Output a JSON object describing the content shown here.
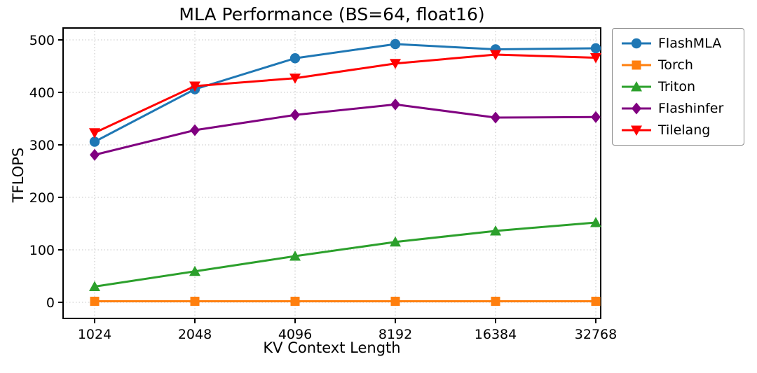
{
  "chart_data": {
    "type": "line",
    "title": "MLA Performance (BS=64, float16)",
    "xlabel": "KV Context Length",
    "ylabel": "TFLOPS",
    "categories": [
      "1024",
      "2048",
      "4096",
      "8192",
      "16384",
      "32768"
    ],
    "ylim": [
      0,
      500
    ],
    "yticks": [
      0,
      100,
      200,
      300,
      400,
      500
    ],
    "grid": true,
    "legend_position": "outside-right",
    "series": [
      {
        "name": "FlashMLA",
        "color": "#1f77b4",
        "marker": "circle",
        "values": [
          306,
          406,
          465,
          492,
          482,
          484
        ]
      },
      {
        "name": "Torch",
        "color": "#ff7f0e",
        "marker": "square",
        "values": [
          2,
          2,
          2,
          2,
          2,
          2
        ]
      },
      {
        "name": "Triton",
        "color": "#2ca02c",
        "marker": "triangle-up",
        "values": [
          30,
          59,
          88,
          115,
          136,
          152
        ]
      },
      {
        "name": "Flashinfer",
        "color": "#800080",
        "marker": "diamond",
        "values": [
          281,
          328,
          357,
          377,
          352,
          353
        ]
      },
      {
        "name": "Tilelang",
        "color": "#ff0000",
        "marker": "triangle-down",
        "values": [
          323,
          412,
          427,
          455,
          472,
          466
        ]
      }
    ]
  }
}
